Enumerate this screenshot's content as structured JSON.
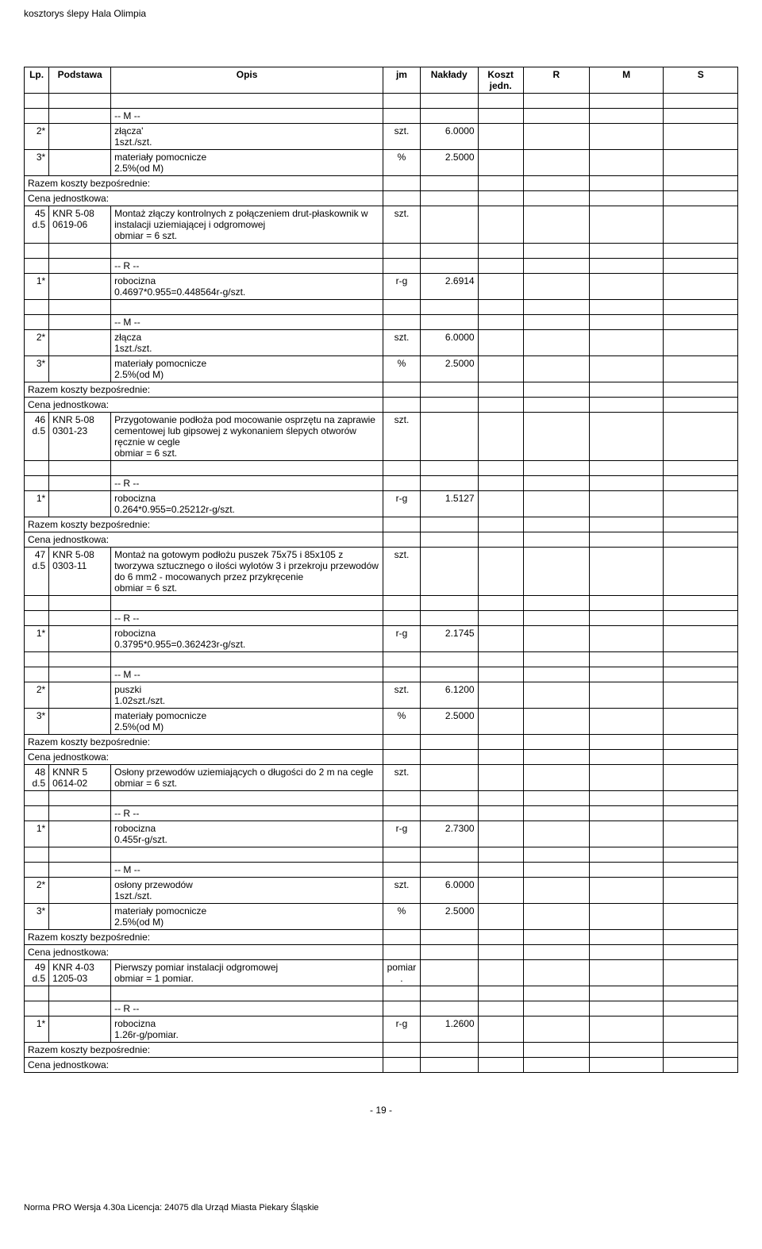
{
  "doc_title": "kosztorys ślepy Hala Olimpia",
  "headers": {
    "lp": "Lp.",
    "podstawa": "Podstawa",
    "opis": "Opis",
    "jm": "jm",
    "naklady": "Nakłady",
    "koszt": "Koszt jedn.",
    "r": "R",
    "m": "M",
    "s": "S"
  },
  "labels": {
    "m_marker": "-- M --",
    "r_marker": "-- R --",
    "razem": "Razem koszty bezpośrednie:",
    "cena": "Cena jednostkowa:",
    "robocizna": "robocizna",
    "mat_pom": "materiały pomocnicze",
    "pct": "2.5%(od M)"
  },
  "rows": {
    "r1": {
      "lp": "2*",
      "desc": "złącza'",
      "sub": "1szt./szt.",
      "jm": "szt.",
      "nak": "6.0000"
    },
    "r2": {
      "lp": "3*",
      "jm": "%",
      "nak": "2.5000"
    },
    "r3": {
      "lp1": "45",
      "lp2": "d.5",
      "basis1": "KNR 5-08",
      "basis2": "0619-06",
      "desc": "Montaż złączy kontrolnych z połączeniem drut-płaskownik w instalacji uziemiającej i odgromowej",
      "obm": "obmiar  = 6 szt.",
      "jm": "szt."
    },
    "r4": {
      "lp": "1*",
      "sub": "0.4697*0.955=0.448564r-g/szt.",
      "jm": "r-g",
      "nak": "2.6914"
    },
    "r5": {
      "lp": "2*",
      "desc": "złącza",
      "sub": "1szt./szt.",
      "jm": "szt.",
      "nak": "6.0000"
    },
    "r6": {
      "lp": "3*",
      "jm": "%",
      "nak": "2.5000"
    },
    "r7": {
      "lp1": "46",
      "lp2": "d.5",
      "basis1": "KNR 5-08",
      "basis2": "0301-23",
      "desc": "Przygotowanie podłoża pod mocowanie osprzętu na zaprawie cementowej lub gipsowej z wykonaniem ślepych otworów ręcznie w cegle",
      "obm": "obmiar  = 6 szt.",
      "jm": "szt."
    },
    "r8": {
      "lp": "1*",
      "sub": "0.264*0.955=0.25212r-g/szt.",
      "jm": "r-g",
      "nak": "1.5127"
    },
    "r9": {
      "lp1": "47",
      "lp2": "d.5",
      "basis1": "KNR 5-08",
      "basis2": "0303-11",
      "desc": "Montaż na gotowym podłożu puszek 75x75 i 85x105 z tworzywa sztucznego o ilości wylotów 3 i przekroju przewodów do 6 mm2 - mocowanych przez przykręcenie",
      "obm": "obmiar  = 6 szt.",
      "jm": "szt."
    },
    "r10": {
      "lp": "1*",
      "sub": "0.3795*0.955=0.362423r-g/szt.",
      "jm": "r-g",
      "nak": "2.1745"
    },
    "r11": {
      "lp": "2*",
      "desc": "puszki",
      "sub": "1.02szt./szt.",
      "jm": "szt.",
      "nak": "6.1200"
    },
    "r12": {
      "lp": "3*",
      "jm": "%",
      "nak": "2.5000"
    },
    "r13": {
      "lp1": "48",
      "lp2": "d.5",
      "basis1": "KNNR 5",
      "basis2": "0614-02",
      "desc": "Osłony przewodów uziemiających o długości do 2 m na cegle",
      "obm": "obmiar  = 6 szt.",
      "jm": "szt."
    },
    "r14": {
      "lp": "1*",
      "sub": "0.455r-g/szt.",
      "jm": "r-g",
      "nak": "2.7300"
    },
    "r15": {
      "lp": "2*",
      "desc": "osłony przewodów",
      "sub": "1szt./szt.",
      "jm": "szt.",
      "nak": "6.0000"
    },
    "r16": {
      "lp": "3*",
      "jm": "%",
      "nak": "2.5000"
    },
    "r17": {
      "lp1": "49",
      "lp2": "d.5",
      "basis1": "KNR 4-03",
      "basis2": "1205-03",
      "desc": "Pierwszy pomiar instalacji odgromowej",
      "obm": "obmiar  = 1 pomiar.",
      "jm": "pomiar."
    },
    "r18": {
      "lp": "1*",
      "sub": "1.26r-g/pomiar.",
      "jm": "r-g",
      "nak": "1.2600"
    }
  },
  "page_num": "- 19 -",
  "footer": "Norma PRO Wersja 4.30a Licencja: 24075 dla Urząd Miasta Piekary Śląskie",
  "style": {
    "font_family": "Arial",
    "font_size_pt": 9,
    "border_color": "#000000",
    "background": "#ffffff"
  }
}
